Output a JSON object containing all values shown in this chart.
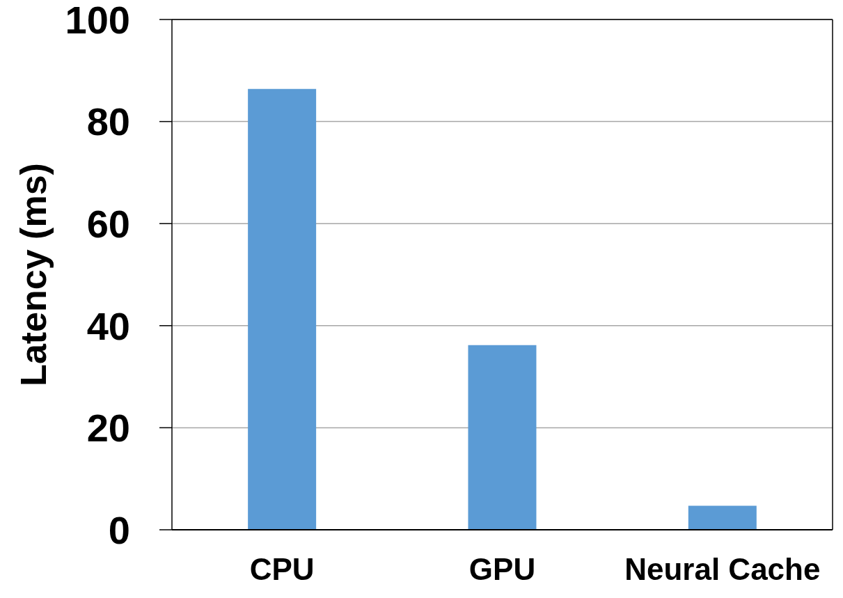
{
  "chart_data": {
    "type": "bar",
    "ylabel": "Latency (ms)",
    "categories": [
      "CPU",
      "GPU",
      "Neural Cache"
    ],
    "values": [
      86.4,
      36.2,
      4.7
    ],
    "color": "#5b9bd5",
    "ylim": [
      0,
      100
    ],
    "yticks": [
      0,
      20,
      40,
      60,
      80,
      100
    ],
    "grid": "y"
  }
}
